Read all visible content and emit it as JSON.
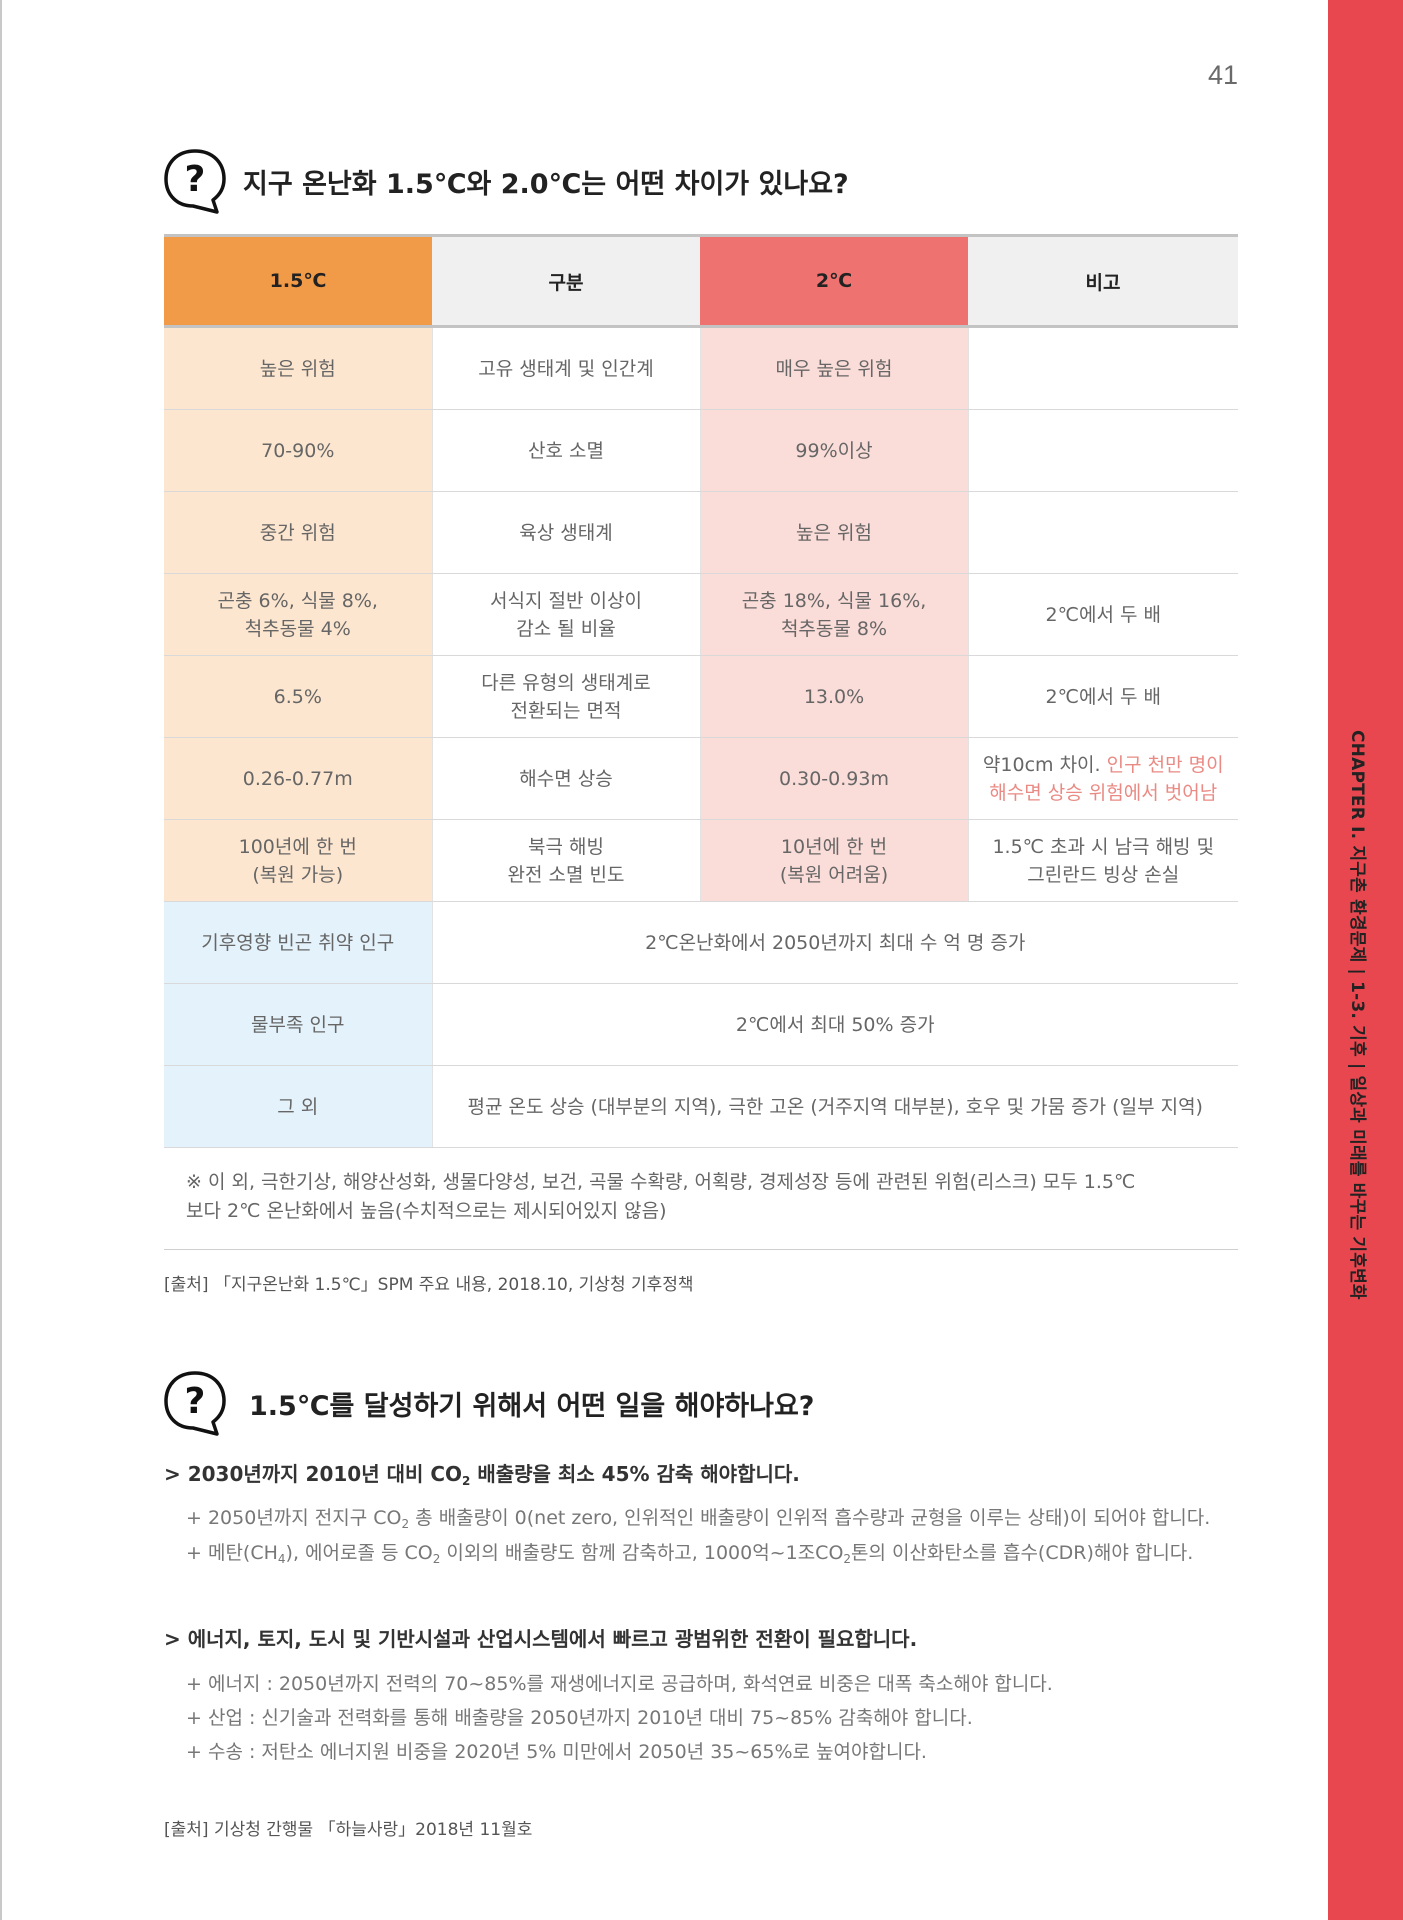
{
  "page_number": "41",
  "side_label": "CHAPTER I. 지구촌 환경문제 | 1-3. 기후 | 일상과 미래를 바꾸는 기후변화",
  "section1": {
    "title": "지구 온난화 1.5℃와 2.0℃는 어떤 차이가 있나요?",
    "headers": [
      "1.5℃",
      "구분",
      "2℃",
      "비고"
    ],
    "rows": [
      {
        "a": "높은 위험",
        "b": "고유 생태계 및 인간계",
        "c": "매우 높은 위험",
        "d": ""
      },
      {
        "a": "70-90%",
        "b": "산호 소멸",
        "c": "99%이상",
        "d": ""
      },
      {
        "a": "중간 위험",
        "b": "육상 생태계",
        "c": "높은 위험",
        "d": ""
      },
      {
        "a1": "곤충 6%, 식물 8%,",
        "a2": "척추동물 4%",
        "b1": "서식지 절반 이상이",
        "b2": "감소 될 비율",
        "c1": "곤충 18%, 식물 16%,",
        "c2": "척추동물 8%",
        "d": "2℃에서 두 배"
      },
      {
        "a": "6.5%",
        "b1": "다른 유형의 생태계로",
        "b2": "전환되는 면적",
        "c": "13.0%",
        "d": "2℃에서 두 배"
      },
      {
        "a": "0.26-0.77m",
        "b": "해수면 상승",
        "c": "0.30-0.93m",
        "d1a": "약10cm 차이.",
        "d1b": " 인구 천만 명이",
        "d2": "해수면 상승 위험에서 벗어남"
      },
      {
        "a1": "100년에 한 번",
        "a2": "(복원 가능)",
        "b1": "북극 해빙",
        "b2": "완전 소멸 빈도",
        "c1": "10년에 한 번",
        "c2": "(복원 어려움)",
        "d1": "1.5℃ 초과 시 남극 해빙 및",
        "d2": "그린란드 빙상 손실"
      }
    ],
    "wide_rows": [
      {
        "label": "기후영향 빈곤 취약 인구",
        "value": "2℃온난화에서 2050년까지 최대 수 억 명 증가"
      },
      {
        "label": "물부족 인구",
        "value": "2℃에서 최대 50% 증가"
      },
      {
        "label": "그 외",
        "value": "평균 온도 상승 (대부분의 지역), 극한 고온 (거주지역 대부분), 호우 및 가뭄 증가 (일부 지역)"
      }
    ],
    "note_line1": "※ 이 외, 극한기상, 해양산성화, 생물다양성, 보건, 곡물 수확량, 어획량, 경제성장 등에 관련된 위험(리스크) 모두 1.5℃",
    "note_line2": "보다 2℃ 온난화에서 높음(수치적으로는 제시되어있지 않음)",
    "source": "[출처] 「지구온난화 1.5℃」SPM 주요 내용, 2018.10, 기상청 기후정책"
  },
  "section2": {
    "title": "1.5℃를 달성하기 위해서 어떤 일을 해야하나요?",
    "b1": {
      "pre": "> 2030년까지 2010년 대비 CO",
      "sub": "2",
      "post": " 배출량을 최소 45% 감축 해야합니다."
    },
    "b1_s1": {
      "pre": "+ 2050년까지 전지구 CO",
      "sub": "2",
      "post": " 총 배출량이 0(net zero, 인위적인 배출량이 인위적 흡수량과 균형을 이루는 상태)이 되어야 합니다."
    },
    "b1_s2": {
      "p1": "+ 메탄(CH",
      "s1": "4",
      "p2": "), 에어로졸 등 CO",
      "s2": "2",
      "p3": " 이외의 배출량도 함께 감축하고, 1000억~1조CO",
      "s3": "2",
      "p4": "톤의 이산화탄소를 흡수(CDR)해야 합니다."
    },
    "b2": "> 에너지, 토지, 도시 및 기반시설과 산업시스템에서 빠르고 광범위한 전환이 필요합니다.",
    "b2_s1": "+ 에너지 : 2050년까지 전력의 70~85%를 재생에너지로 공급하며, 화석연료 비중은 대폭 축소해야 합니다.",
    "b2_s2": "+ 산업 : 신기술과 전력화를 통해 배출량을 2050년까지 2010년 대비 75~85% 감축해야 합니다.",
    "b2_s3": "+ 수송 : 저탄소 에너지원 비중을 2020년 5% 미만에서 2050년 35~65%로 높여야합니다.",
    "source": "[출처] 기상청 간행물 「하늘사랑」2018년 11월호"
  }
}
